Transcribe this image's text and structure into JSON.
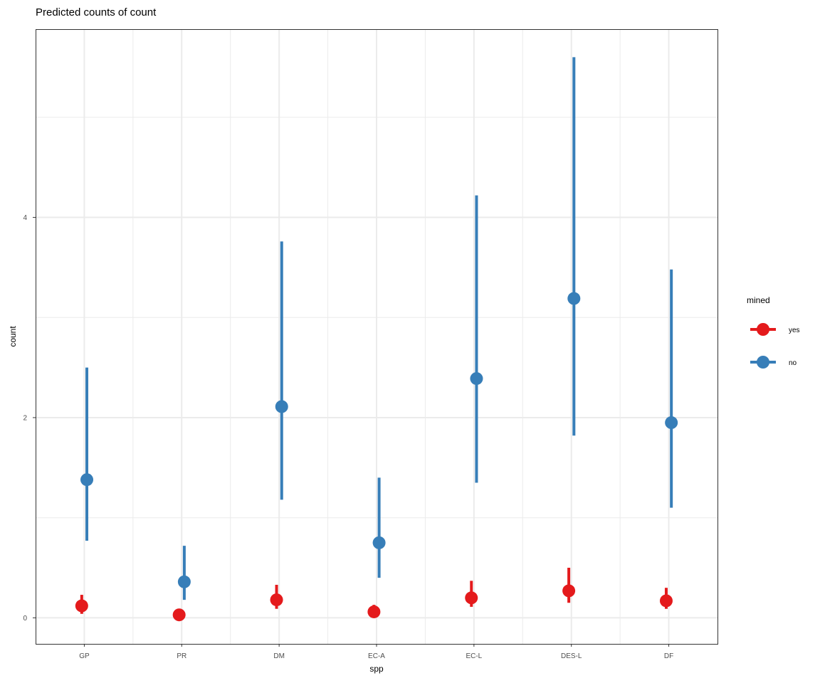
{
  "chart_data": {
    "type": "scatter",
    "title": "Predicted counts of count",
    "xlabel": "spp",
    "ylabel": "count",
    "categories": [
      "GP",
      "PR",
      "DM",
      "EC-A",
      "EC-L",
      "DES-L",
      "DF"
    ],
    "ylim": [
      -0.26,
      5.88
    ],
    "y_ticks": [
      0,
      2,
      4
    ],
    "grid": true,
    "legend": {
      "title": "mined",
      "position": "right"
    },
    "series": [
      {
        "name": "yes",
        "color": "#E41A1C",
        "values": [
          0.12,
          0.03,
          0.18,
          0.06,
          0.2,
          0.27,
          0.17
        ],
        "lower": [
          0.04,
          0.0,
          0.09,
          0.02,
          0.11,
          0.15,
          0.09
        ],
        "upper": [
          0.23,
          0.07,
          0.33,
          0.13,
          0.37,
          0.5,
          0.3
        ]
      },
      {
        "name": "no",
        "color": "#377EB8",
        "values": [
          1.38,
          0.36,
          2.11,
          0.75,
          2.39,
          3.19,
          1.95
        ],
        "lower": [
          0.77,
          0.18,
          1.18,
          0.4,
          1.35,
          1.82,
          1.1
        ],
        "upper": [
          2.5,
          0.72,
          3.76,
          1.4,
          4.22,
          5.6,
          3.48
        ]
      }
    ]
  }
}
